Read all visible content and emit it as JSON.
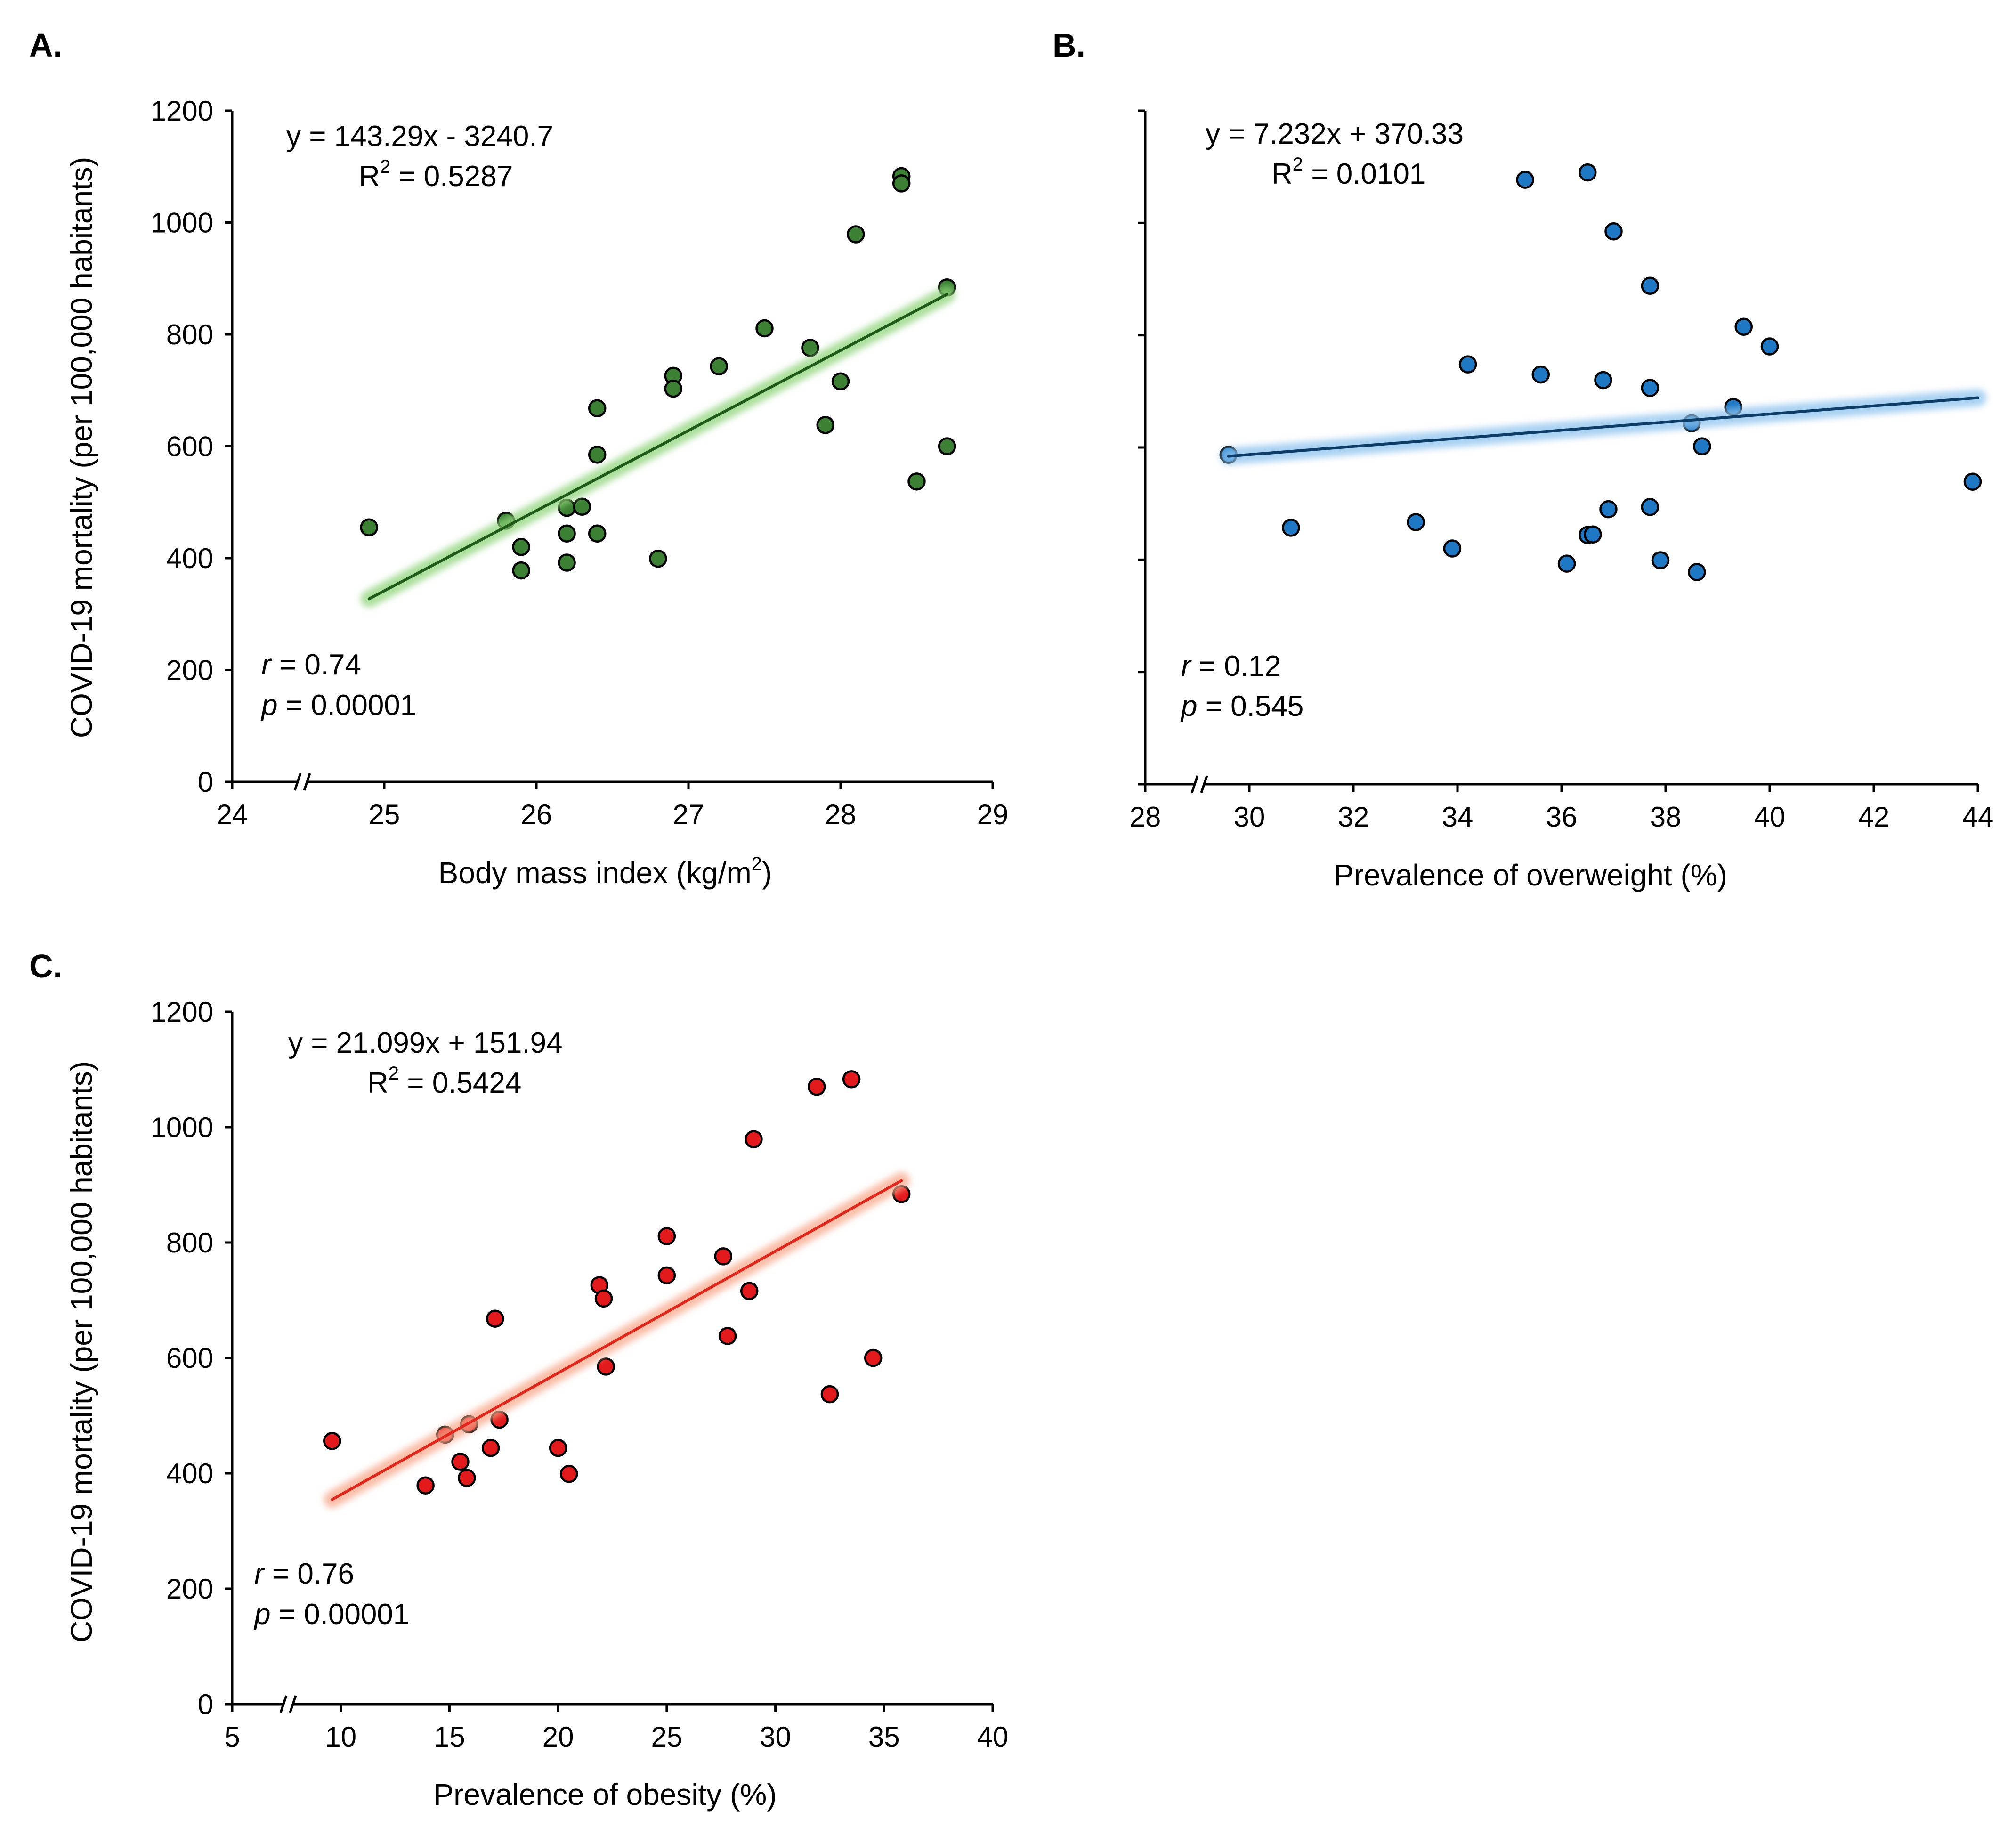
{
  "chart_data": [
    {
      "type": "scatter",
      "panel_label": "A.",
      "xlabel": "Body mass index (kg/m",
      "xlabel_sup": "2",
      "xlabel_end": ")",
      "ylabel": "COVID-19 mortality (per 100,000 habitants)",
      "xlim": [
        24,
        29
      ],
      "ylim": [
        0,
        1200
      ],
      "xticks": [
        "24",
        "25",
        "26",
        "27",
        "28",
        "29"
      ],
      "yticks": [
        "0",
        "200",
        "400",
        "600",
        "800",
        "1000",
        "1200"
      ],
      "axis_break": true,
      "point_color": "#3b8033",
      "line_color": "#1f5a1a",
      "glow_color": "#8fd47a",
      "trend": {
        "slope": 143.29,
        "intercept": -3240.7,
        "x0": 24.9,
        "x1": 28.7
      },
      "equation": "y = 143.29x - 3240.7",
      "r2_label": "R",
      "r2_sup": "2",
      "r2_value": " = 0.5287",
      "r_var": "r",
      "r_value": " = 0.74",
      "p_var": "p",
      "p_value": " = 0.00001",
      "points": [
        {
          "x": 24.9,
          "y": 455
        },
        {
          "x": 25.8,
          "y": 467
        },
        {
          "x": 25.9,
          "y": 420
        },
        {
          "x": 25.9,
          "y": 378
        },
        {
          "x": 26.2,
          "y": 490
        },
        {
          "x": 26.2,
          "y": 444
        },
        {
          "x": 26.2,
          "y": 392
        },
        {
          "x": 26.3,
          "y": 492
        },
        {
          "x": 26.4,
          "y": 668
        },
        {
          "x": 26.4,
          "y": 585
        },
        {
          "x": 26.4,
          "y": 444
        },
        {
          "x": 26.8,
          "y": 399
        },
        {
          "x": 26.9,
          "y": 726
        },
        {
          "x": 26.9,
          "y": 703
        },
        {
          "x": 27.2,
          "y": 743
        },
        {
          "x": 27.5,
          "y": 811
        },
        {
          "x": 27.8,
          "y": 776
        },
        {
          "x": 27.9,
          "y": 638
        },
        {
          "x": 28.0,
          "y": 716
        },
        {
          "x": 28.1,
          "y": 979
        },
        {
          "x": 28.4,
          "y": 1083
        },
        {
          "x": 28.4,
          "y": 1070
        },
        {
          "x": 28.5,
          "y": 537
        },
        {
          "x": 28.7,
          "y": 884
        },
        {
          "x": 28.7,
          "y": 600
        }
      ]
    },
    {
      "type": "scatter",
      "panel_label": "B.",
      "xlabel": "Prevalence of overweight (%)",
      "xlim": [
        28,
        44
      ],
      "ylim": [
        0,
        1200
      ],
      "xticks": [
        "28",
        "30",
        "32",
        "34",
        "36",
        "38",
        "40",
        "42",
        "44"
      ],
      "yticks": [
        "0",
        "200",
        "400",
        "600",
        "800",
        "1000",
        "1200"
      ],
      "axis_break": true,
      "point_color": "#1f78c4",
      "line_color": "#0d3d66",
      "glow_color": "#8cc2ee",
      "trend": {
        "slope": 7.232,
        "intercept": 370.33,
        "x0": 29.6,
        "x1": 44
      },
      "equation": "y = 7.232x + 370.33",
      "r2_label": "R",
      "r2_sup": "2",
      "r2_value": " = 0.0101",
      "r_var": "r",
      "r_value": " = 0.12",
      "p_var": "p",
      "p_value": " = 0.545",
      "points": [
        {
          "x": 29.6,
          "y": 587
        },
        {
          "x": 30.8,
          "y": 457
        },
        {
          "x": 33.2,
          "y": 467
        },
        {
          "x": 33.9,
          "y": 420
        },
        {
          "x": 34.2,
          "y": 748
        },
        {
          "x": 35.3,
          "y": 1077
        },
        {
          "x": 35.6,
          "y": 730
        },
        {
          "x": 36.1,
          "y": 393
        },
        {
          "x": 36.5,
          "y": 1090
        },
        {
          "x": 36.5,
          "y": 444
        },
        {
          "x": 36.6,
          "y": 445
        },
        {
          "x": 36.8,
          "y": 720
        },
        {
          "x": 36.9,
          "y": 490
        },
        {
          "x": 37.0,
          "y": 985
        },
        {
          "x": 37.7,
          "y": 888
        },
        {
          "x": 37.7,
          "y": 706
        },
        {
          "x": 37.7,
          "y": 494
        },
        {
          "x": 37.9,
          "y": 399
        },
        {
          "x": 38.5,
          "y": 643
        },
        {
          "x": 38.6,
          "y": 378
        },
        {
          "x": 38.7,
          "y": 602
        },
        {
          "x": 39.3,
          "y": 672
        },
        {
          "x": 39.5,
          "y": 815
        },
        {
          "x": 40.0,
          "y": 780
        },
        {
          "x": 43.9,
          "y": 539
        }
      ]
    },
    {
      "type": "scatter",
      "panel_label": "C.",
      "xlabel": "Prevalence of obesity (%)",
      "ylabel": "COVID-19 mortality (per 100,000 habitants)",
      "xlim": [
        5,
        40
      ],
      "ylim": [
        0,
        1200
      ],
      "xticks": [
        "5",
        "10",
        "15",
        "20",
        "25",
        "30",
        "35",
        "40"
      ],
      "yticks": [
        "0",
        "200",
        "400",
        "600",
        "800",
        "1000",
        "1200"
      ],
      "axis_break": true,
      "point_color": "#e31a1c",
      "line_color": "#e3261b",
      "glow_color": "#f7a88a",
      "trend": {
        "slope": 21.099,
        "intercept": 151.94,
        "x0": 9.6,
        "x1": 35.8
      },
      "equation": "y = 21.099x + 151.94",
      "r2_label": "R",
      "r2_sup": "2",
      "r2_value": " = 0.5424",
      "r_var": "r",
      "r_value": " = 0.76",
      "p_var": "p",
      "p_value": " = 0.00001",
      "points": [
        {
          "x": 9.6,
          "y": 456
        },
        {
          "x": 13.9,
          "y": 379
        },
        {
          "x": 14.8,
          "y": 467
        },
        {
          "x": 15.5,
          "y": 420
        },
        {
          "x": 15.8,
          "y": 392
        },
        {
          "x": 15.9,
          "y": 485
        },
        {
          "x": 16.9,
          "y": 444
        },
        {
          "x": 17.1,
          "y": 668
        },
        {
          "x": 17.3,
          "y": 493
        },
        {
          "x": 20.0,
          "y": 444
        },
        {
          "x": 20.5,
          "y": 399
        },
        {
          "x": 21.9,
          "y": 726
        },
        {
          "x": 22.1,
          "y": 703
        },
        {
          "x": 22.2,
          "y": 585
        },
        {
          "x": 25.0,
          "y": 811
        },
        {
          "x": 25.0,
          "y": 743
        },
        {
          "x": 27.6,
          "y": 776
        },
        {
          "x": 27.8,
          "y": 638
        },
        {
          "x": 28.8,
          "y": 716
        },
        {
          "x": 29.0,
          "y": 979
        },
        {
          "x": 31.9,
          "y": 1070
        },
        {
          "x": 32.5,
          "y": 537
        },
        {
          "x": 33.5,
          "y": 1083
        },
        {
          "x": 34.5,
          "y": 600
        },
        {
          "x": 35.8,
          "y": 884
        }
      ]
    }
  ]
}
